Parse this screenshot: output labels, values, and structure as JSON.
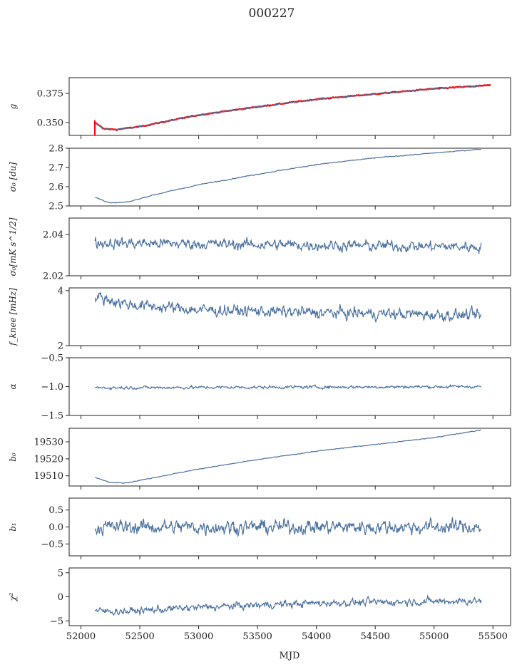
{
  "title": "000227",
  "xlabel": "MJD",
  "x_ticks": [
    52000,
    52500,
    53000,
    53500,
    54000,
    54500,
    55000,
    55500
  ],
  "xlim": [
    51900,
    55650
  ],
  "colors": {
    "series": "#4c72a0",
    "fit": "#ff0000"
  },
  "chart_data": [
    {
      "type": "line",
      "key": "g",
      "ylabel": "g",
      "ylim": [
        0.339,
        0.3885
      ],
      "yticks": [
        0.35,
        0.375
      ],
      "ytick_labels": [
        "0.350",
        "0.375"
      ],
      "xrange": [
        52120,
        55400
      ],
      "series": [
        {
          "role": "data",
          "color": "#4c72a0",
          "points": [
            [
              52120,
              0.35
            ],
            [
              52200,
              0.3445
            ],
            [
              52300,
              0.344
            ],
            [
              52500,
              0.3465
            ],
            [
              53000,
              0.3565
            ],
            [
              53500,
              0.3635
            ],
            [
              54000,
              0.37
            ],
            [
              54500,
              0.3745
            ],
            [
              55000,
              0.379
            ],
            [
              55400,
              0.3815
            ]
          ],
          "noise": 0.0008
        }
      ],
      "overlay": {
        "role": "fit",
        "color": "#ff0000",
        "xrange": [
          52110,
          55480
        ],
        "points": [
          [
            52110,
            0.3505
          ],
          [
            52200,
            0.3445
          ],
          [
            52300,
            0.344
          ],
          [
            52500,
            0.3465
          ],
          [
            53000,
            0.3565
          ],
          [
            53500,
            0.3635
          ],
          [
            54000,
            0.37
          ],
          [
            54500,
            0.3745
          ],
          [
            55000,
            0.379
          ],
          [
            55480,
            0.382
          ]
        ],
        "noise": 0.0006
      }
    },
    {
      "type": "line",
      "key": "sigma0",
      "ylabel": "σ₀ [du]",
      "ylim": [
        2.5,
        2.8
      ],
      "yticks": [
        2.5,
        2.6,
        2.7,
        2.8
      ],
      "ytick_labels": [
        "2.5",
        "2.6",
        "2.7",
        "2.8"
      ],
      "xrange": [
        52120,
        55400
      ],
      "series": [
        {
          "role": "data",
          "color": "#4c72a0",
          "points": [
            [
              52120,
              2.545
            ],
            [
              52250,
              2.515
            ],
            [
              52400,
              2.52
            ],
            [
              52600,
              2.555
            ],
            [
              53000,
              2.61
            ],
            [
              53500,
              2.665
            ],
            [
              54000,
              2.715
            ],
            [
              54500,
              2.75
            ],
            [
              55000,
              2.775
            ],
            [
              55400,
              2.795
            ]
          ],
          "noise": 0.003
        }
      ]
    },
    {
      "type": "line",
      "key": "sigma0_mk",
      "ylabel": "σ₀[mK s^1/2]",
      "ylim": [
        2.02,
        2.048
      ],
      "yticks": [
        2.02,
        2.04
      ],
      "ytick_labels": [
        "2.02",
        "2.04"
      ],
      "xrange": [
        52120,
        55400
      ],
      "series": [
        {
          "role": "data",
          "color": "#4c72a0",
          "points": [
            [
              52120,
              2.036
            ],
            [
              55400,
              2.034
            ]
          ],
          "noise": 0.0035
        }
      ]
    },
    {
      "type": "line",
      "key": "fknee",
      "ylabel": "f_knee [mHz]",
      "ylim": [
        2.0,
        4.1
      ],
      "yticks": [
        2,
        4
      ],
      "ytick_labels": [
        "2",
        "4"
      ],
      "xrange": [
        52120,
        55400
      ],
      "series": [
        {
          "role": "data",
          "color": "#4c72a0",
          "points": [
            [
              52120,
              3.8
            ],
            [
              52400,
              3.5
            ],
            [
              53000,
              3.3
            ],
            [
              54000,
              3.2
            ],
            [
              55400,
              3.1
            ]
          ],
          "noise": 0.28
        }
      ]
    },
    {
      "type": "line",
      "key": "alpha",
      "ylabel": "α",
      "ylim": [
        -1.5,
        -0.5
      ],
      "yticks": [
        -1.5,
        -1.0,
        -0.5
      ],
      "ytick_labels": [
        "−1.5",
        "−1.0",
        "−0.5"
      ],
      "xrange": [
        52120,
        55400
      ],
      "series": [
        {
          "role": "data",
          "color": "#4c72a0",
          "points": [
            [
              52120,
              -1.02
            ],
            [
              55400,
              -1.0
            ]
          ],
          "noise": 0.035
        }
      ]
    },
    {
      "type": "line",
      "key": "b0",
      "ylabel": "b₀",
      "ylim": [
        19504,
        19538
      ],
      "yticks": [
        19510,
        19520,
        19530
      ],
      "ytick_labels": [
        "19510",
        "19520",
        "19530"
      ],
      "xrange": [
        52120,
        55400
      ],
      "series": [
        {
          "role": "data",
          "color": "#4c72a0",
          "points": [
            [
              52120,
              19509
            ],
            [
              52250,
              19506
            ],
            [
              52400,
              19506
            ],
            [
              53000,
              19514
            ],
            [
              53500,
              19519.5
            ],
            [
              54000,
              19524.5
            ],
            [
              54500,
              19528.5
            ],
            [
              55000,
              19532.5
            ],
            [
              55400,
              19537
            ]
          ],
          "noise": 0.3
        }
      ]
    },
    {
      "type": "line",
      "key": "b1",
      "ylabel": "b₁",
      "ylim": [
        -0.85,
        0.85
      ],
      "yticks": [
        -0.5,
        0.0,
        0.5
      ],
      "ytick_labels": [
        "−0.5",
        "0.0",
        "0.5"
      ],
      "xrange": [
        52120,
        55400
      ],
      "series": [
        {
          "role": "data",
          "color": "#4c72a0",
          "points": [
            [
              52120,
              0.0
            ],
            [
              55400,
              0.0
            ]
          ],
          "noise": 0.28
        }
      ]
    },
    {
      "type": "line",
      "key": "chi2",
      "ylabel": "χ²",
      "ylim": [
        -6,
        6
      ],
      "yticks": [
        -5,
        0,
        5
      ],
      "ytick_labels": [
        "−5",
        "0",
        "5"
      ],
      "xrange": [
        52120,
        55400
      ],
      "series": [
        {
          "role": "data",
          "color": "#4c72a0",
          "points": [
            [
              52120,
              -3.0
            ],
            [
              52400,
              -3.0
            ],
            [
              53000,
              -2.2
            ],
            [
              54000,
              -1.3
            ],
            [
              55400,
              -0.8
            ]
          ],
          "noise": 1.0
        }
      ]
    }
  ]
}
